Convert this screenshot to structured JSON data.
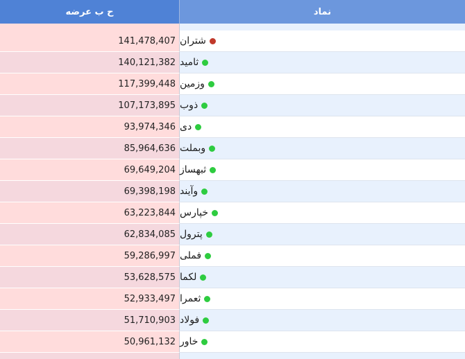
{
  "header": {
    "supply_label": "ح ب عرضه",
    "symbol_label": "نماد"
  },
  "colors": {
    "header_left": "#4f82d6",
    "header_right": "#6c97dd",
    "status_green": "#2ecc40",
    "status_red": "#c0392b"
  },
  "rows": [
    {
      "symbol": "شتران",
      "supply": "141,478,407",
      "status": "red"
    },
    {
      "symbol": "ثامید",
      "supply": "140,121,382",
      "status": "green"
    },
    {
      "symbol": "وزمین",
      "supply": "117,399,448",
      "status": "green"
    },
    {
      "symbol": "ذوب",
      "supply": "107,173,895",
      "status": "green"
    },
    {
      "symbol": "دی",
      "supply": "93,974,346",
      "status": "green"
    },
    {
      "symbol": "وبملت",
      "supply": "85,964,636",
      "status": "green"
    },
    {
      "symbol": "ثبهساز",
      "supply": "69,649,204",
      "status": "green"
    },
    {
      "symbol": "وآیند",
      "supply": "69,398,198",
      "status": "green"
    },
    {
      "symbol": "خپارس",
      "supply": "63,223,844",
      "status": "green"
    },
    {
      "symbol": "پترول",
      "supply": "62,834,085",
      "status": "green"
    },
    {
      "symbol": "فملی",
      "supply": "59,286,997",
      "status": "green"
    },
    {
      "symbol": "لکما",
      "supply": "53,628,575",
      "status": "green"
    },
    {
      "symbol": "ثعمرا",
      "supply": "52,933,497",
      "status": "green"
    },
    {
      "symbol": "فولاد",
      "supply": "51,710,903",
      "status": "green"
    },
    {
      "symbol": "خاور",
      "supply": "50,961,132",
      "status": "green"
    }
  ]
}
